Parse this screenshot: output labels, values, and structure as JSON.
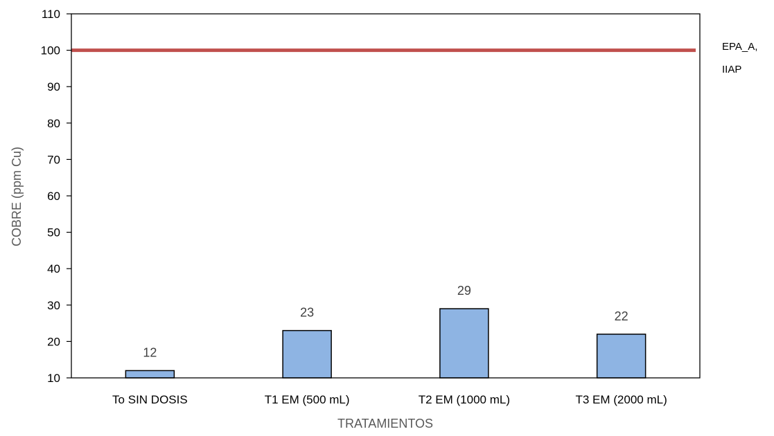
{
  "chart_data": {
    "type": "bar",
    "categories": [
      "To SIN DOSIS",
      "T1 EM (500 mL)",
      "T2 EM (1000 mL)",
      "T3 EM (2000 mL)"
    ],
    "values": [
      12,
      23,
      29,
      22
    ],
    "data_labels": [
      "12",
      "23",
      "29",
      "22"
    ],
    "xlabel": "TRATAMIENTOS",
    "ylabel": "COBRE  (ppm Cu)",
    "ylim": [
      10,
      110
    ],
    "yticks": [
      10,
      20,
      30,
      40,
      50,
      60,
      70,
      80,
      90,
      100,
      110
    ],
    "grid": false,
    "reference_line": {
      "value": 100,
      "label_lines": [
        "EPA_A,",
        "IIAP"
      ],
      "color": "#C0504D"
    },
    "bar_color": "#8EB4E3",
    "bar_edge_color": "#000000"
  }
}
